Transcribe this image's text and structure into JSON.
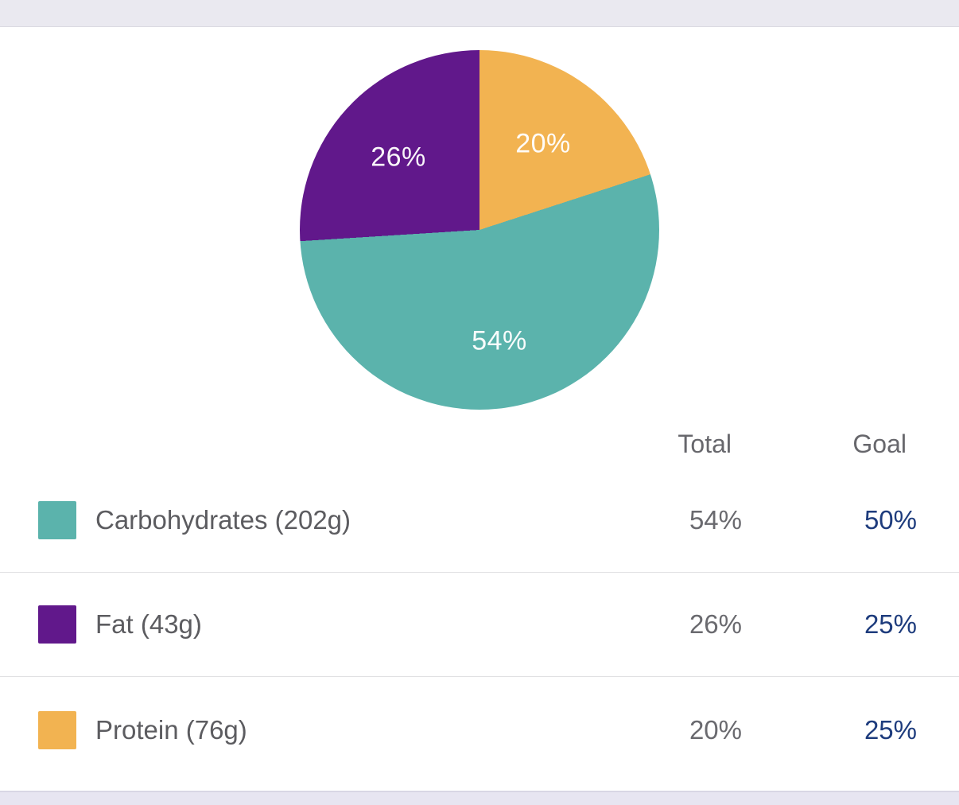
{
  "chart_data": {
    "type": "pie",
    "title": "",
    "direction": "clockwise",
    "start_angle_deg": 0,
    "clockwise_from_top": [
      2,
      0,
      1
    ],
    "slices": [
      {
        "name": "Carbohydrates",
        "label": "Carbohydrates (202g)",
        "grams": "202g",
        "percent": 54,
        "display": "54%",
        "goal": "50%",
        "color": "#5BB3AC"
      },
      {
        "name": "Fat",
        "label": "Fat (43g)",
        "grams": "43g",
        "percent": 26,
        "display": "26%",
        "goal": "25%",
        "color": "#61188B"
      },
      {
        "name": "Protein",
        "label": "Protein (76g)",
        "grams": "76g",
        "percent": 20,
        "display": "20%",
        "goal": "25%",
        "color": "#F2B351"
      }
    ],
    "legend_position": "table-below"
  },
  "table": {
    "headers": {
      "total": "Total",
      "goal": "Goal"
    }
  },
  "colors": {
    "goal_link": "#1E3C7D",
    "value_gray": "#6A6A6F",
    "label_gray": "#5C5C60",
    "divider": "#E1E1E3",
    "top_bar": "#EAE9F0",
    "bottom_bar": "#E7E5F1",
    "pie_label_text": "#FFFFFF"
  }
}
